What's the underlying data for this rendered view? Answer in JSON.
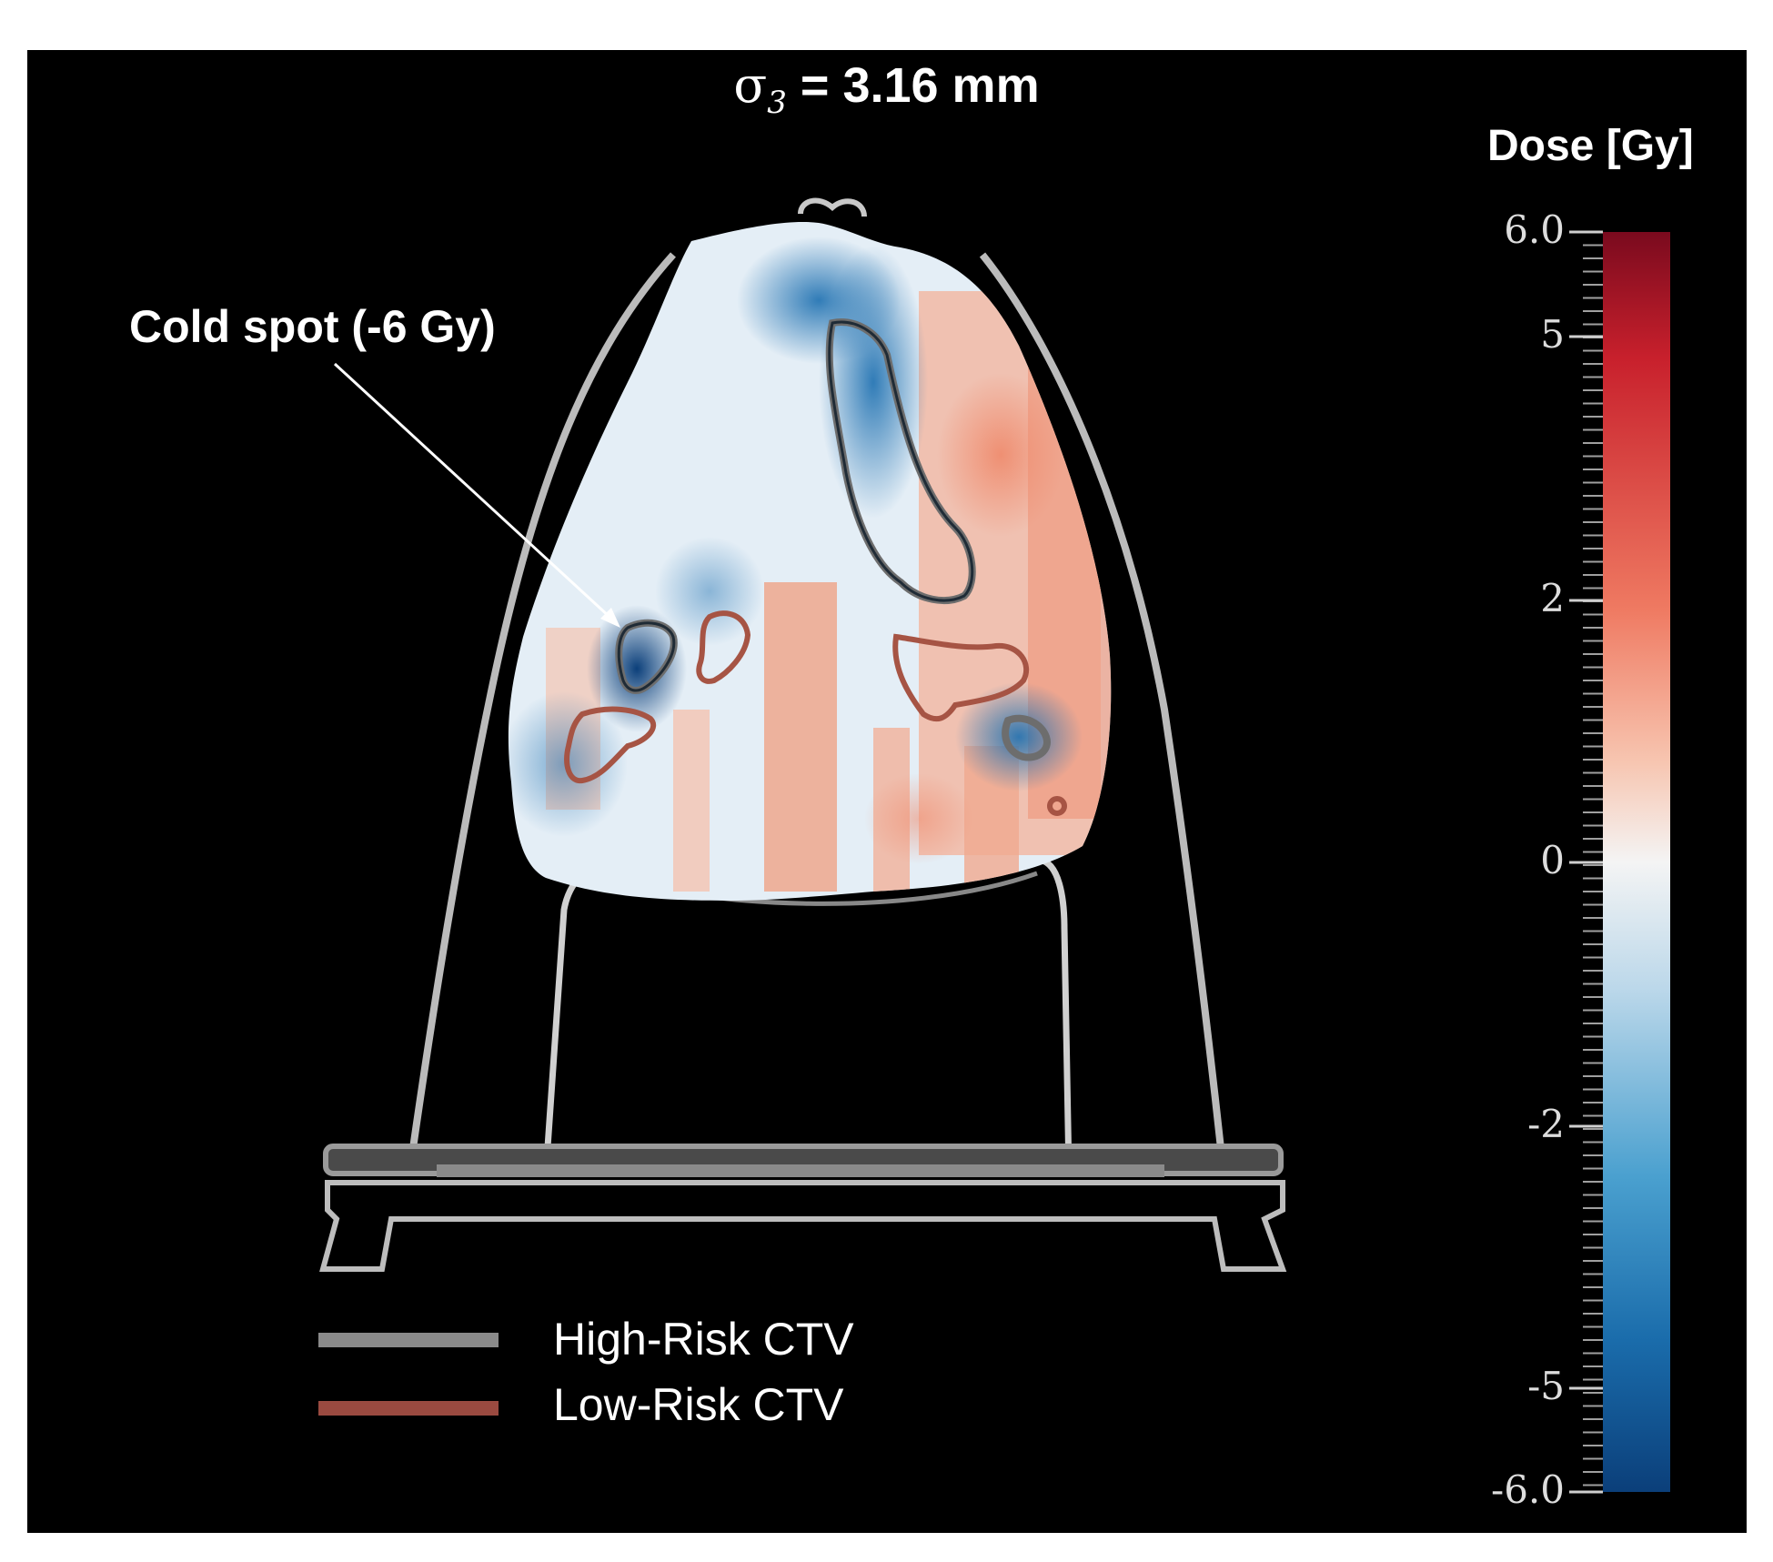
{
  "title": {
    "symbol": "σ",
    "subscript": "3",
    "text": " = 3.16 mm"
  },
  "colorbar": {
    "title": "Dose [Gy]",
    "ticks": [
      "6.0",
      "5",
      "2",
      "0",
      "-2",
      "-5",
      "-6.0"
    ],
    "min": -6.0,
    "max": 6.0,
    "colors": {
      "high": "#7a0a1e",
      "mid": "#f4f4f4",
      "low": "#0b3f7a"
    }
  },
  "annotation": {
    "text": "Cold spot (-6 Gy)"
  },
  "legend": [
    {
      "label": "High-Risk CTV",
      "color": "#8a8a8a"
    },
    {
      "label": "Low-Risk CTV",
      "color": "#9a4a40"
    }
  ]
}
